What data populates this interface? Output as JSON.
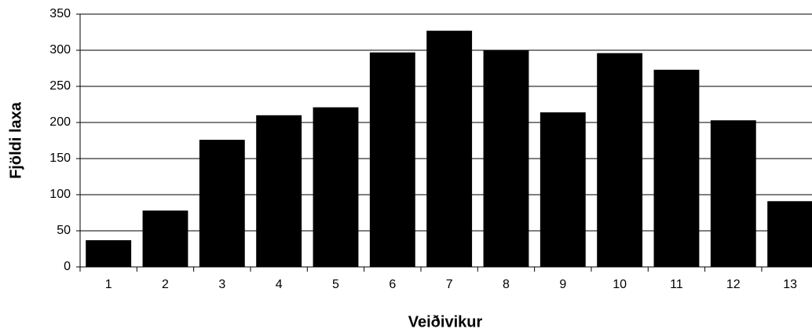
{
  "chart_data": {
    "type": "bar",
    "xlabel": "Veiðivikur",
    "ylabel": "Fjöldi laxa",
    "categories": [
      "1",
      "2",
      "3",
      "4",
      "5",
      "6",
      "7",
      "8",
      "9",
      "10",
      "11",
      "12",
      "13"
    ],
    "values": [
      37,
      78,
      176,
      210,
      221,
      297,
      327,
      300,
      214,
      296,
      273,
      203,
      91
    ],
    "color": "#000000",
    "ylim": [
      0,
      350
    ],
    "yticks": [
      0,
      50,
      100,
      150,
      200,
      250,
      300,
      350
    ],
    "grid": true
  }
}
